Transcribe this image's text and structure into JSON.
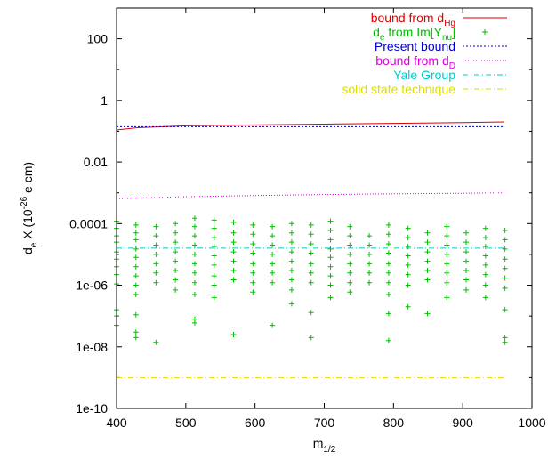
{
  "chart_data": {
    "type": "scatter",
    "xlabel": "m",
    "xlabel_sub": "1/2",
    "ylabel_base": "d",
    "ylabel_sub": "e",
    "ylabel_rest": "X (10",
    "ylabel_exp": "-26",
    "ylabel_unit": "e cm)",
    "xlim": [
      400,
      1000
    ],
    "ylim_log10": [
      -10,
      3
    ],
    "y_scale": "log",
    "x_ticks": [
      "400",
      "500",
      "600",
      "700",
      "800",
      "900",
      "1000"
    ],
    "y_ticks": [
      {
        "label": "100",
        "exp": 2
      },
      {
        "label": "1",
        "exp": 0
      },
      {
        "label": "0.01",
        "exp": -2
      },
      {
        "label": "0.0001",
        "exp": -4
      },
      {
        "label": "1e-06",
        "exp": -6
      },
      {
        "label": "1e-08",
        "exp": -8
      },
      {
        "label": "1e-10",
        "exp": -10
      }
    ],
    "legend_position": "top-right",
    "series": [
      {
        "name": "bound from d",
        "name_sub": "Hg",
        "kind": "line",
        "color": "#e00000",
        "dash": "",
        "x": [
          400,
          430,
          500,
          600,
          700,
          800,
          900,
          960
        ],
        "y": [
          0.11,
          0.13,
          0.15,
          0.16,
          0.17,
          0.18,
          0.19,
          0.2
        ]
      },
      {
        "name": "d",
        "name_sub": "e",
        "name_rest": " from Im[Y",
        "name_sub2": "nu",
        "name_end": "]",
        "kind": "points",
        "color": "#00c000",
        "columns": [
          400,
          428,
          457,
          485,
          513,
          541,
          569,
          597,
          625,
          653,
          681,
          709,
          737,
          765,
          793,
          821,
          849,
          877,
          905,
          933,
          961
        ],
        "samples": [
          [
            0.00012,
            7e-05,
            4e-05,
            2.5e-05,
            1.2e-05,
            7e-06,
            4e-06,
            2.2e-06,
            1.1e-06,
            1.6e-07,
            5e-08,
            1e-07
          ],
          [
            9e-05,
            5e-05,
            3e-05,
            1.5e-05,
            8e-06,
            4e-06,
            2e-06,
            1e-06,
            5e-07,
            1.1e-07,
            3e-08,
            2e-08
          ],
          [
            8e-05,
            4e-05,
            2e-05,
            1e-05,
            5e-06,
            2.5e-06,
            1.2e-06,
            1.4e-08
          ],
          [
            0.0001,
            5e-05,
            2.5e-05,
            1.2e-05,
            6e-06,
            3e-06,
            1.5e-06,
            7e-07
          ],
          [
            0.00015,
            8e-05,
            4e-05,
            2e-05,
            1e-05,
            5e-06,
            2.5e-06,
            1.2e-06,
            5e-07,
            8e-08,
            6e-08
          ],
          [
            0.00013,
            7e-05,
            3.5e-05,
            1.8e-05,
            9e-06,
            4.5e-06,
            2e-06,
            1e-06,
            4e-07
          ],
          [
            0.00011,
            5e-05,
            2.5e-05,
            1.2e-05,
            6e-06,
            3e-06,
            1.5e-06,
            2.5e-08
          ],
          [
            9e-05,
            4.5e-05,
            2.2e-05,
            1.1e-05,
            5e-06,
            2.5e-06,
            1.2e-06,
            6e-07
          ],
          [
            8e-05,
            4e-05,
            2e-05,
            1e-05,
            5e-06,
            2.5e-06,
            1.2e-06,
            5e-08
          ],
          [
            0.0001,
            5e-05,
            2.5e-05,
            1.2e-05,
            6e-06,
            3e-06,
            1.5e-06,
            7e-07,
            2.5e-07
          ],
          [
            9e-05,
            4.5e-05,
            2.2e-05,
            1.1e-05,
            5e-06,
            2.5e-06,
            1.2e-06,
            1.3e-07,
            2e-08
          ],
          [
            0.00012,
            6e-05,
            3e-05,
            1.5e-05,
            8e-06,
            4e-06,
            2e-06,
            1e-06,
            4e-07
          ],
          [
            8e-05,
            4e-05,
            2e-05,
            1e-05,
            5e-06,
            2.5e-06,
            1.2e-06,
            6e-07
          ],
          [
            4e-05,
            2e-05,
            1e-05,
            5e-06,
            2.5e-06,
            1.2e-06
          ],
          [
            9e-05,
            4.5e-05,
            2.2e-05,
            1.1e-05,
            5e-06,
            2.5e-06,
            1.2e-06,
            5e-07,
            1.2e-07,
            1.6e-08
          ],
          [
            7e-05,
            3.5e-05,
            1.8e-05,
            9e-06,
            4.5e-06,
            2.2e-06,
            1e-06,
            2e-07
          ],
          [
            5e-05,
            2.5e-05,
            1.2e-05,
            6e-06,
            3e-06,
            1.5e-06,
            1.2e-07
          ],
          [
            8e-05,
            4e-05,
            2e-05,
            1e-05,
            5e-06,
            2.5e-06,
            1.2e-06,
            4e-07
          ],
          [
            5e-05,
            2.5e-05,
            1.2e-05,
            6e-06,
            3e-06,
            1.5e-06,
            7e-07
          ],
          [
            7e-05,
            3.5e-05,
            1.8e-05,
            9e-06,
            4.5e-06,
            2.2e-06,
            1e-06,
            4e-07
          ],
          [
            6e-05,
            3e-05,
            1.5e-05,
            7e-06,
            3.5e-06,
            1.7e-06,
            8e-07,
            1.6e-07,
            2e-08,
            1.4e-08
          ]
        ]
      },
      {
        "name": "Present bound",
        "kind": "line",
        "color": "#0000cc",
        "dash": "2,2",
        "x": [
          400,
          960
        ],
        "y": [
          0.14,
          0.14
        ]
      },
      {
        "name": "bound from d",
        "name_sub": "D",
        "kind": "line",
        "color": "#e000e0",
        "dash": "1,2",
        "x": [
          400,
          500,
          600,
          700,
          800,
          900,
          960
        ],
        "y": [
          0.00065,
          0.00075,
          0.00082,
          0.00088,
          0.00093,
          0.00097,
          0.001
        ]
      },
      {
        "name": "Yale Group",
        "kind": "line",
        "color": "#00cccc",
        "dash": "6,3,1,3",
        "x": [
          400,
          960
        ],
        "y": [
          1.6e-05,
          1.6e-05
        ]
      },
      {
        "name": "solid state technique",
        "kind": "line",
        "color": "#dddd00",
        "dash": "6,3,1,3",
        "x": [
          400,
          960
        ],
        "y": [
          1e-09,
          1e-09
        ]
      }
    ]
  }
}
